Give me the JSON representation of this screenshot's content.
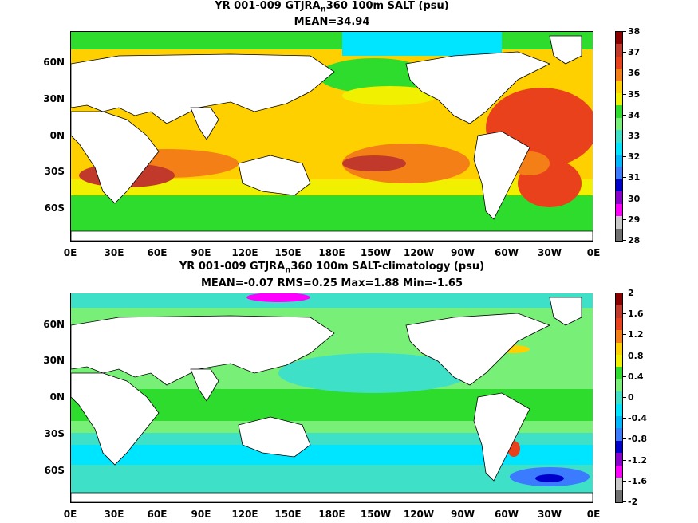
{
  "panels": [
    {
      "title_line1_a": "YR 001-009 GTJRA",
      "title_sub": "n",
      "title_line1_b": "360 100m SALT (psu)",
      "title_line2": "MEAN=34.94",
      "colorbar": {
        "labels": [
          "38",
          "37",
          "36",
          "35",
          "34",
          "33",
          "32",
          "31",
          "30",
          "29",
          "28"
        ],
        "colors": [
          "#8b0000",
          "#c0392b",
          "#e8411b",
          "#f47f17",
          "#ffd000",
          "#f0f000",
          "#2ddc2d",
          "#78f078",
          "#3fe0c8",
          "#00e5ff",
          "#00b8ff",
          "#3a7bff",
          "#0000cc",
          "#8a00cc",
          "#ff00ff",
          "#c8c8c8",
          "#707070"
        ]
      }
    },
    {
      "title_line1_a": "YR 001-009 GTJRA",
      "title_sub": "n",
      "title_line1_b": "360 100m SALT-climatology (psu)",
      "title_line2": "MEAN=-0.07   RMS=0.25   Max=1.88   Min=-1.65",
      "colorbar": {
        "labels": [
          "2",
          "1.6",
          "1.2",
          "0.8",
          "0.4",
          "0",
          "-0.4",
          "-0.8",
          "-1.2",
          "-1.6",
          "-2"
        ],
        "colors": [
          "#8b0000",
          "#c0392b",
          "#e8411b",
          "#f47f17",
          "#ffd000",
          "#f0f000",
          "#2ddc2d",
          "#78f078",
          "#3fe0c8",
          "#00e5ff",
          "#00b8ff",
          "#3a7bff",
          "#0000cc",
          "#8a00cc",
          "#ff00ff",
          "#c8c8c8",
          "#707070"
        ]
      }
    }
  ],
  "lat_labels": [
    "60N",
    "30N",
    "0N",
    "30S",
    "60S"
  ],
  "lon_labels": [
    "0E",
    "30E",
    "60E",
    "90E",
    "120E",
    "150E",
    "180E",
    "150W",
    "120W",
    "90W",
    "60W",
    "30W",
    "0E"
  ]
}
